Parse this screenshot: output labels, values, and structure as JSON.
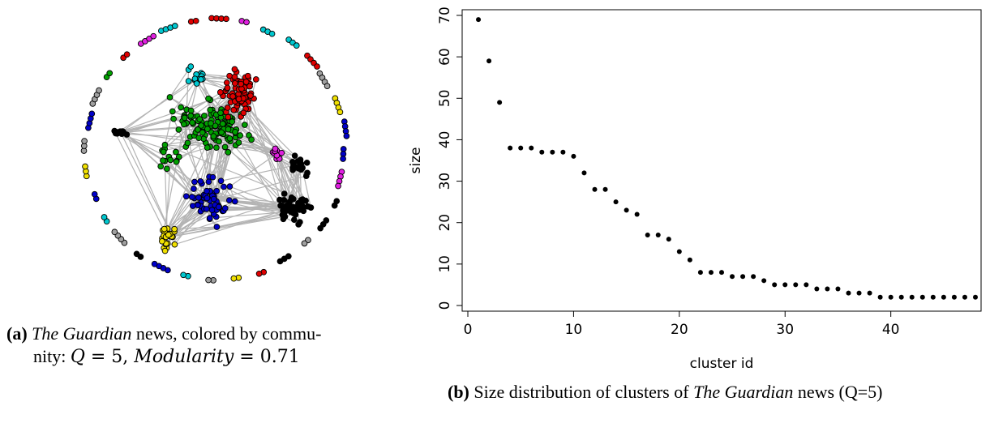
{
  "figure_a": {
    "label": "(a)",
    "caption_italic": "The Guardian",
    "caption_rest": " news, colored by commu-",
    "caption_line2_prefix": "nity: ",
    "q_var": "Q",
    "eq1": " = 5, ",
    "mod_var": "Modularity",
    "eq2": " = 0.71",
    "community_colors": [
      "#00a000",
      "#e00000",
      "#0000c8",
      "#f0e000",
      "#000000",
      "#e020e0",
      "#00c8d0",
      "#a0a0a0"
    ],
    "node_count": 494
  },
  "figure_b": {
    "label": "(b)",
    "caption_pre": " Size distribution of clusters of ",
    "caption_italic": "The Guardian",
    "caption_post": " news (Q=5)"
  },
  "chart_data": {
    "type": "scatter",
    "title": "",
    "xlabel": "cluster id",
    "ylabel": "size",
    "xlim": [
      0,
      48
    ],
    "ylim": [
      0,
      70
    ],
    "x_ticks": [
      0,
      10,
      20,
      30,
      40
    ],
    "y_ticks": [
      0,
      10,
      20,
      30,
      40,
      50,
      60,
      70
    ],
    "grid": false,
    "x": [
      1,
      2,
      3,
      4,
      5,
      6,
      7,
      8,
      9,
      10,
      11,
      12,
      13,
      14,
      15,
      16,
      17,
      18,
      19,
      20,
      21,
      22,
      23,
      24,
      25,
      26,
      27,
      28,
      29,
      30,
      31,
      32,
      33,
      34,
      35,
      36,
      37,
      38,
      39,
      40,
      41,
      42,
      43,
      44,
      45,
      46,
      47,
      48
    ],
    "y": [
      69,
      59,
      49,
      38,
      38,
      38,
      37,
      37,
      37,
      36,
      32,
      28,
      28,
      25,
      23,
      22,
      17,
      17,
      16,
      13,
      11,
      8,
      8,
      8,
      7,
      7,
      7,
      6,
      5,
      5,
      5,
      5,
      4,
      4,
      4,
      3,
      3,
      3,
      2,
      2,
      2,
      2,
      2,
      2,
      2,
      2,
      2,
      2
    ]
  }
}
